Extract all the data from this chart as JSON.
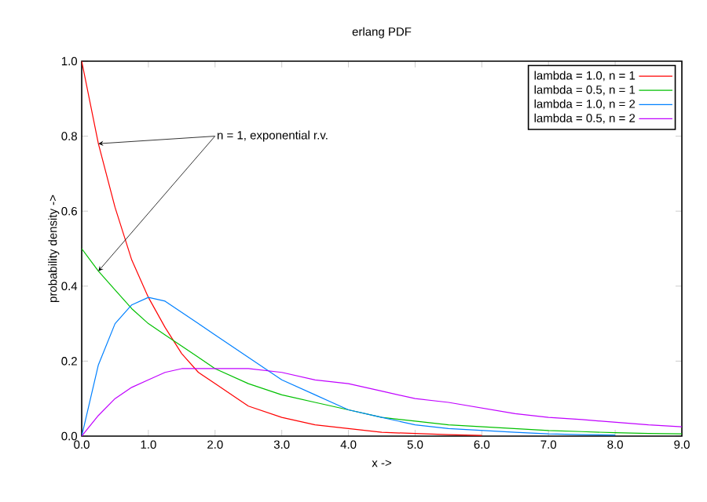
{
  "chart_data": {
    "type": "line",
    "title": "erlang PDF",
    "xlabel": "x ->",
    "ylabel": "probability density ->",
    "x": [
      0,
      0.25,
      0.5,
      0.75,
      1,
      1.25,
      1.5,
      1.75,
      2,
      2.5,
      3,
      3.5,
      4,
      4.5,
      5,
      5.5,
      6,
      6.5,
      7,
      7.5,
      8,
      8.5,
      9
    ],
    "series": [
      {
        "name": "lambda = 1.0, n = 1",
        "color": "#ff0000",
        "x": [
          0,
          0.25,
          0.5,
          0.75,
          1,
          1.25,
          1.5,
          1.75,
          2,
          2.5,
          3,
          3.5,
          4,
          4.5,
          5,
          5.5,
          6
        ],
        "values": [
          1.0,
          0.78,
          0.61,
          0.47,
          0.37,
          0.29,
          0.22,
          0.17,
          0.14,
          0.08,
          0.05,
          0.03,
          0.02,
          0.01,
          0.007,
          0.004,
          0.002
        ]
      },
      {
        "name": "lambda = 0.5, n = 1",
        "color": "#00c000",
        "values": [
          0.5,
          0.44,
          0.39,
          0.34,
          0.3,
          0.27,
          0.24,
          0.21,
          0.18,
          0.14,
          0.11,
          0.09,
          0.07,
          0.05,
          0.04,
          0.03,
          0.025,
          0.02,
          0.015,
          0.012,
          0.009,
          0.007,
          0.006
        ]
      },
      {
        "name": "lambda = 1.0, n = 2",
        "color": "#0080ff",
        "x": [
          0,
          0.25,
          0.5,
          0.75,
          1,
          1.25,
          1.5,
          1.75,
          2,
          2.5,
          3,
          3.5,
          4,
          4.5,
          5,
          5.5,
          6,
          6.5,
          7,
          7.5,
          8
        ],
        "values": [
          0,
          0.19,
          0.3,
          0.35,
          0.37,
          0.36,
          0.33,
          0.3,
          0.27,
          0.21,
          0.15,
          0.11,
          0.07,
          0.05,
          0.03,
          0.02,
          0.015,
          0.01,
          0.006,
          0.004,
          0.003
        ]
      },
      {
        "name": "lambda = 0.5, n = 2",
        "color": "#c000ff",
        "values": [
          0,
          0.055,
          0.1,
          0.13,
          0.15,
          0.17,
          0.18,
          0.18,
          0.18,
          0.18,
          0.17,
          0.15,
          0.14,
          0.12,
          0.1,
          0.09,
          0.075,
          0.06,
          0.05,
          0.044,
          0.037,
          0.03,
          0.025
        ]
      }
    ],
    "annotations": [
      {
        "text": "n = 1, exponential r.v.",
        "x": 0.25,
        "y": 0.78
      }
    ],
    "xlim": [
      0,
      9
    ],
    "ylim": [
      0,
      1
    ],
    "xticks": [
      {
        "value": 0,
        "label": "0.0"
      },
      {
        "value": 1,
        "label": "1.0"
      },
      {
        "value": 2,
        "label": "2.0"
      },
      {
        "value": 3,
        "label": "3.0"
      },
      {
        "value": 4,
        "label": "4.0"
      },
      {
        "value": 5,
        "label": "5.0"
      },
      {
        "value": 6,
        "label": "6.0"
      },
      {
        "value": 7,
        "label": "7.0"
      },
      {
        "value": 8,
        "label": "8.0"
      },
      {
        "value": 9,
        "label": "9.0"
      }
    ],
    "yticks": [
      {
        "value": 0,
        "label": "0.0"
      },
      {
        "value": 0.2,
        "label": "0.2"
      },
      {
        "value": 0.4,
        "label": "0.4"
      },
      {
        "value": 0.6,
        "label": "0.6"
      },
      {
        "value": 0.8,
        "label": "0.8"
      },
      {
        "value": 1,
        "label": "1.0"
      }
    ],
    "grid": false,
    "legend": "top right",
    "marker": "none",
    "line_style": "solid"
  }
}
